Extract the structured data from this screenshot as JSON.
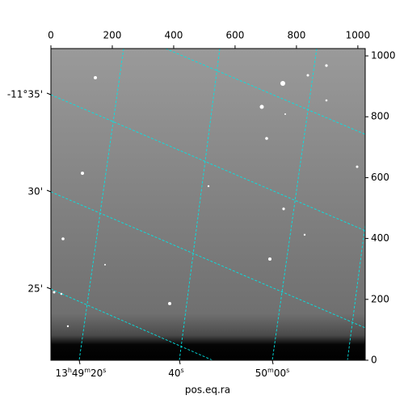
{
  "chart_data": {
    "type": "image",
    "xlabel": "pos.eq.ra",
    "xlim": [
      0,
      1024
    ],
    "ylim": [
      0,
      1024
    ],
    "xticks": [
      0,
      200,
      400,
      600,
      800,
      1000
    ],
    "yticks": [
      0,
      200,
      400,
      600,
      800,
      1000
    ],
    "ra_ticks": [
      "13h49m20s",
      "40s",
      "50m00s"
    ],
    "dec_ticks": [
      "-11°35'",
      "30'",
      "25'"
    ],
    "grid_color": "#00e5e5"
  }
}
